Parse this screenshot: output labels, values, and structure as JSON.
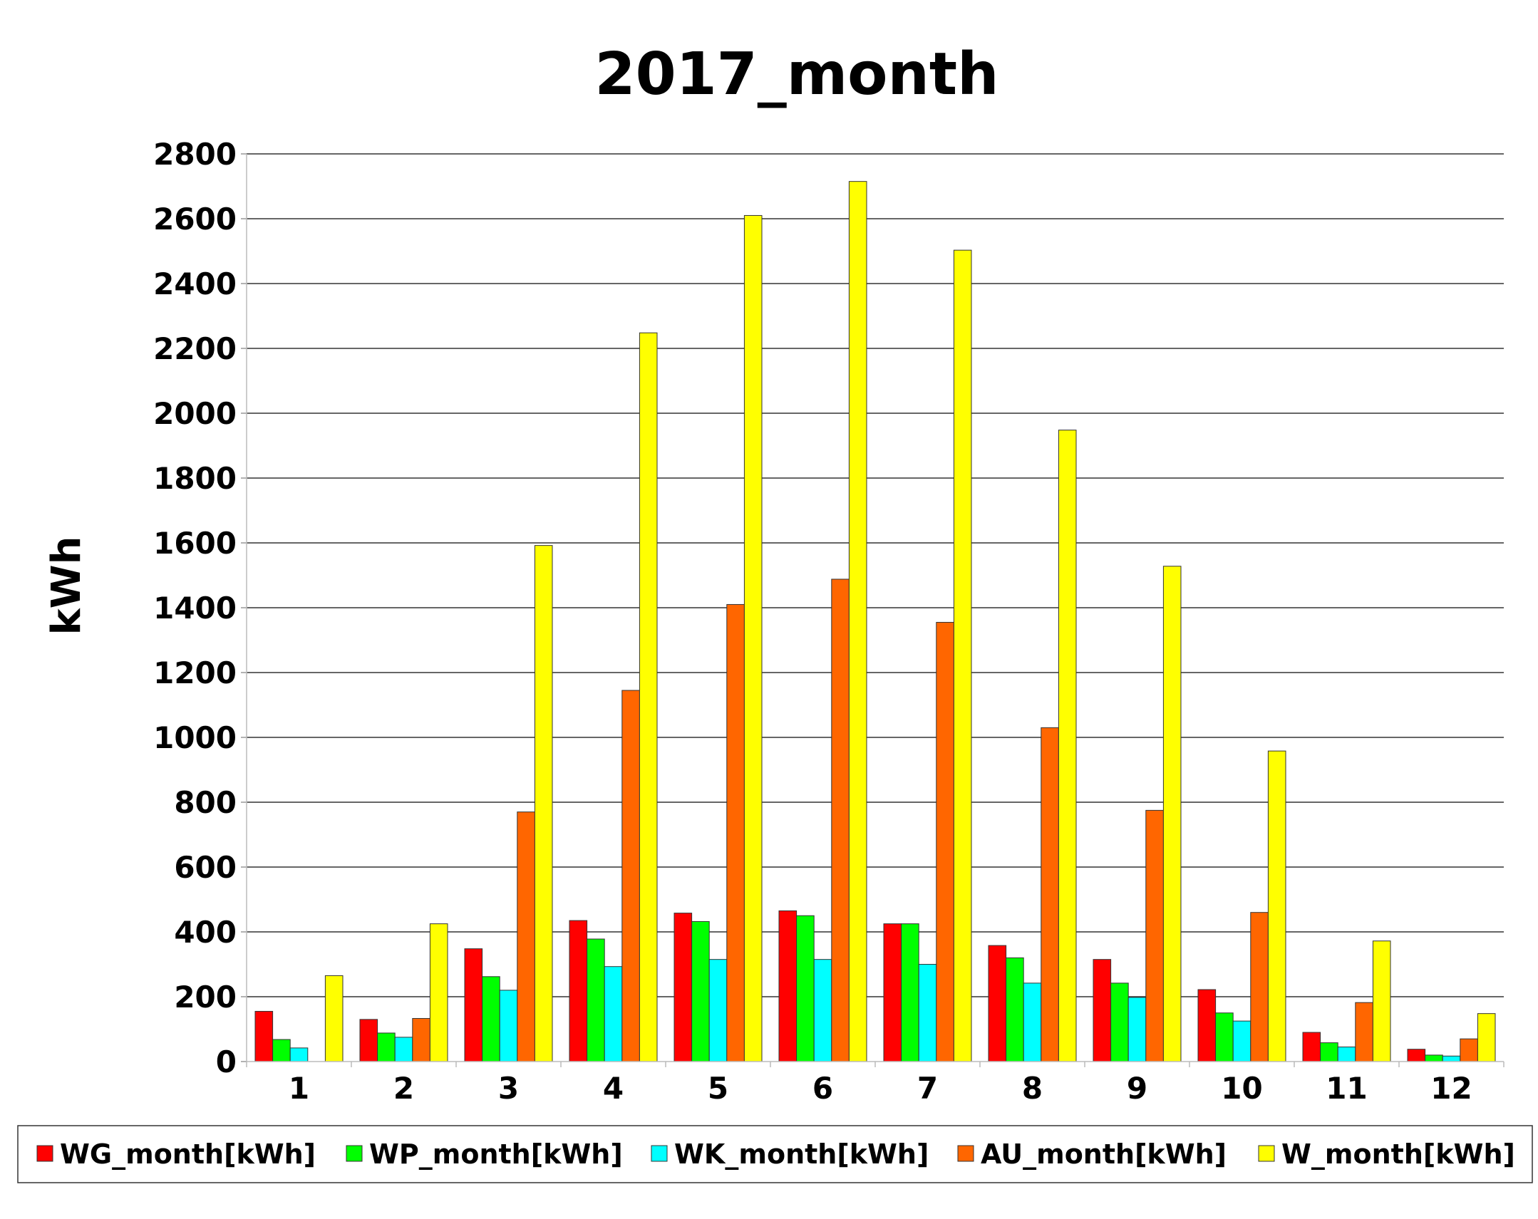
{
  "chart_data": {
    "type": "bar",
    "title": "2017_month",
    "xlabel": "",
    "ylabel": "kWh",
    "ylim": [
      0,
      2800
    ],
    "ytick_step": 200,
    "grid": true,
    "legend_position": "bottom",
    "categories": [
      "1",
      "2",
      "3",
      "4",
      "5",
      "6",
      "7",
      "8",
      "9",
      "10",
      "11",
      "12"
    ],
    "series": [
      {
        "name": "WG_month[kWh]",
        "color": "#ff0000",
        "values": [
          155,
          130,
          348,
          435,
          458,
          465,
          425,
          358,
          315,
          222,
          90,
          38
        ]
      },
      {
        "name": "WP_month[kWh]",
        "color": "#00ff00",
        "values": [
          68,
          88,
          262,
          378,
          432,
          450,
          425,
          320,
          242,
          150,
          58,
          20
        ]
      },
      {
        "name": "WK_month[kWh]",
        "color": "#00ffff",
        "values": [
          42,
          75,
          220,
          293,
          315,
          315,
          300,
          242,
          198,
          125,
          45,
          17
        ]
      },
      {
        "name": "AU_month[kWh]",
        "color": "#ff6600",
        "values": [
          0,
          133,
          770,
          1145,
          1410,
          1488,
          1355,
          1030,
          775,
          460,
          182,
          70
        ]
      },
      {
        "name": "W_month[kWh]",
        "color": "#ffff00",
        "values": [
          265,
          425,
          1592,
          2248,
          2610,
          2715,
          2503,
          1948,
          1528,
          958,
          372,
          148
        ]
      }
    ]
  }
}
